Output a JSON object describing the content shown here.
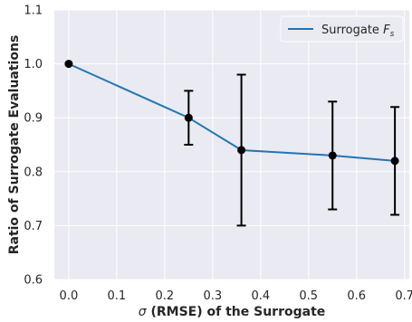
{
  "chart_data": {
    "type": "line",
    "xlabel_symbol": "σ",
    "xlabel_rest": " (RMSE) of the Surrogate",
    "ylabel": "Ratio of Surrogate Evaluations",
    "xlim": [
      -0.03,
      0.71
    ],
    "ylim": [
      0.6,
      1.1
    ],
    "x_ticks": [
      0.0,
      0.1,
      0.2,
      0.3,
      0.4,
      0.5,
      0.6,
      0.7
    ],
    "x_tick_labels": [
      "0.0",
      "0.1",
      "0.2",
      "0.3",
      "0.4",
      "0.5",
      "0.6",
      "0.7"
    ],
    "y_ticks": [
      0.6,
      0.7,
      0.8,
      0.9,
      1.0,
      1.1
    ],
    "y_tick_labels": [
      "0.6",
      "0.7",
      "0.8",
      "0.9",
      "1.0",
      "1.1"
    ],
    "grid": true,
    "legend_position": "top-right",
    "legend_label": "Surrogate",
    "legend_symbol": "F",
    "legend_subscript": "s",
    "series": [
      {
        "name": "Surrogate F_s",
        "color": "#1f77b4",
        "x": [
          0.0,
          0.25,
          0.36,
          0.55,
          0.68
        ],
        "y": [
          1.0,
          0.9,
          0.84,
          0.83,
          0.82
        ],
        "error_upper": [
          1.0,
          0.95,
          0.98,
          0.93,
          0.92
        ],
        "error_lower": [
          1.0,
          0.85,
          0.7,
          0.73,
          0.72
        ]
      }
    ],
    "colors": {
      "background": "#eaeaf2",
      "grid": "#ffffff",
      "marker": "#000000",
      "errorbar": "#000000",
      "text": "#262626"
    }
  }
}
